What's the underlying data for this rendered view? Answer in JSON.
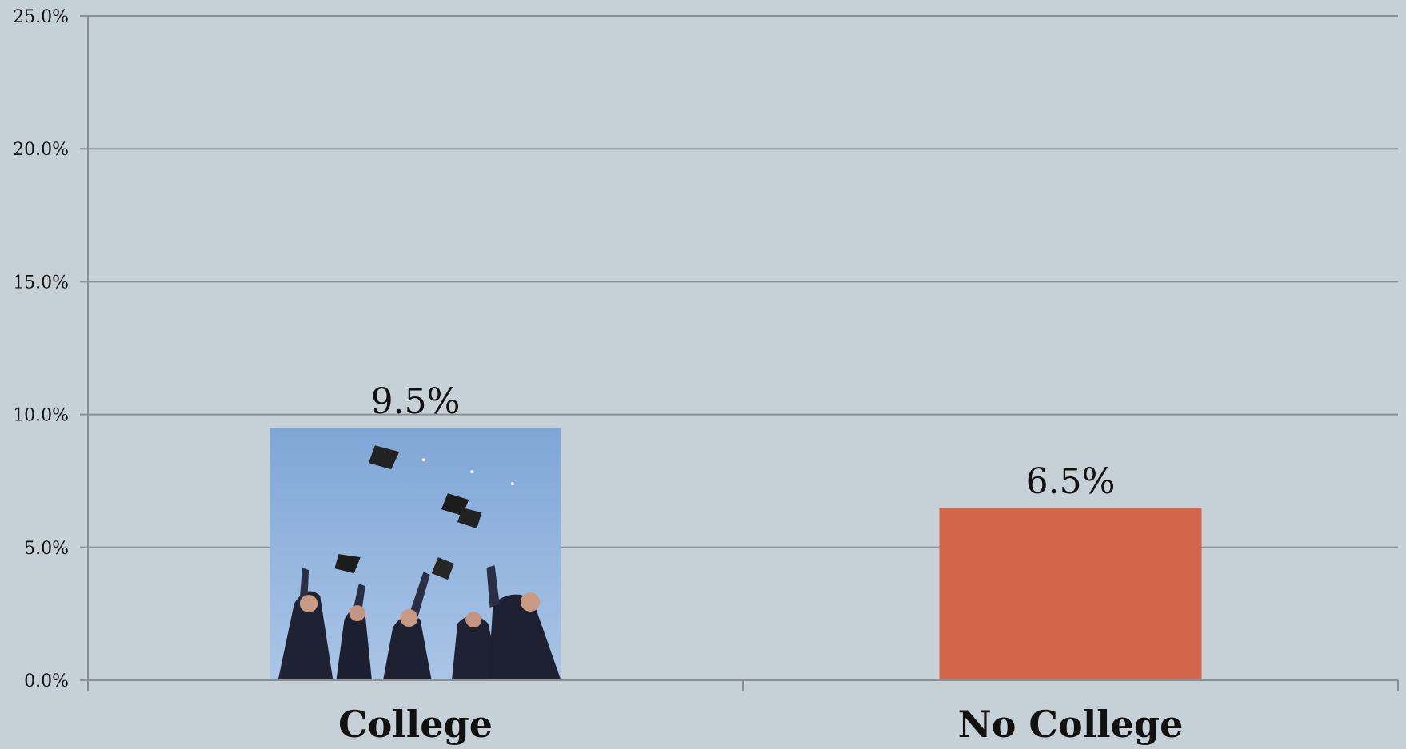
{
  "chart_data": {
    "type": "bar",
    "categories": [
      "College",
      "No College"
    ],
    "values": [
      9.5,
      6.5
    ],
    "data_labels": [
      "9.5%",
      "6.5%"
    ],
    "ylim": [
      0,
      25
    ],
    "y_ticks": [
      0,
      5,
      10,
      15,
      20,
      25
    ],
    "y_tick_labels": [
      "0.0%",
      "5.0%",
      "10.0%",
      "15.0%",
      "20.0%",
      "25.0%"
    ],
    "grid": true,
    "bar_fills": [
      "graduation-photo",
      "#d2654a"
    ],
    "title": "",
    "xlabel": "",
    "ylabel": ""
  }
}
